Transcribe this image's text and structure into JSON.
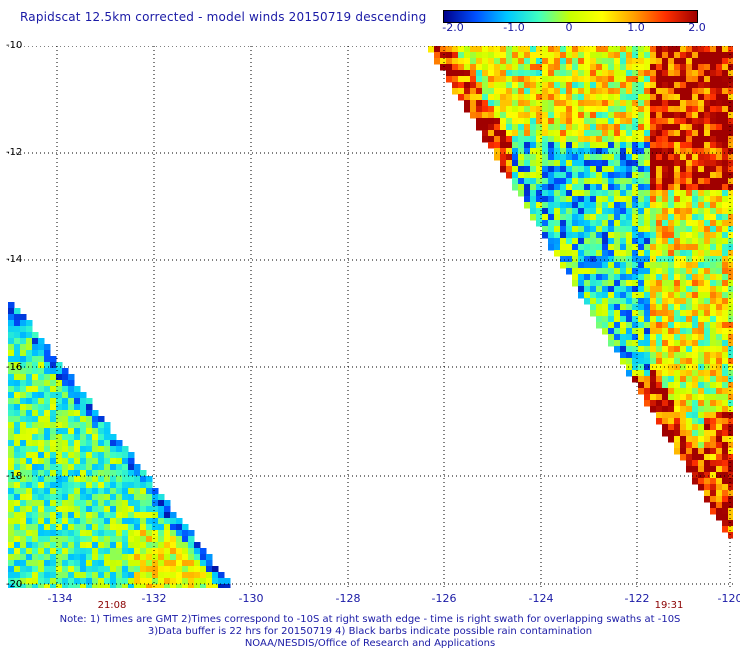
{
  "title": "Rapidscat 12.5km corrected - model winds 20150719 descending",
  "colorbar": {
    "ticks": [
      "-2.0",
      "-1.0",
      "0",
      "1.0",
      "2.0"
    ],
    "colors": [
      "#00008b",
      "#0050ff",
      "#00c8ff",
      "#40ffc0",
      "#c8ff00",
      "#ffff00",
      "#ffa000",
      "#ff3000",
      "#a00000"
    ]
  },
  "map": {
    "lon_range": [
      -135,
      -120
    ],
    "lat_range": [
      -20,
      -10
    ],
    "x_ticks": [
      "-134",
      "-132",
      "-130",
      "-128",
      "-126",
      "-124",
      "-122",
      "-120"
    ],
    "y_ticks": [
      "-10",
      "-12",
      "-14",
      "-16",
      "-18",
      "-20"
    ],
    "grid": "dotted"
  },
  "times": {
    "left": "21:08",
    "right": "19:31"
  },
  "notes": {
    "line1": "Note: 1) Times are GMT 2)Times correspond to -10S at right swath edge - time is right swath for overlapping swaths at -10S",
    "line2": "3)Data buffer is 22 hrs for 20150719 4) Black barbs indicate possible rain contamination",
    "line3": "NOAA/NESDIS/Office of Research and Applications"
  }
}
